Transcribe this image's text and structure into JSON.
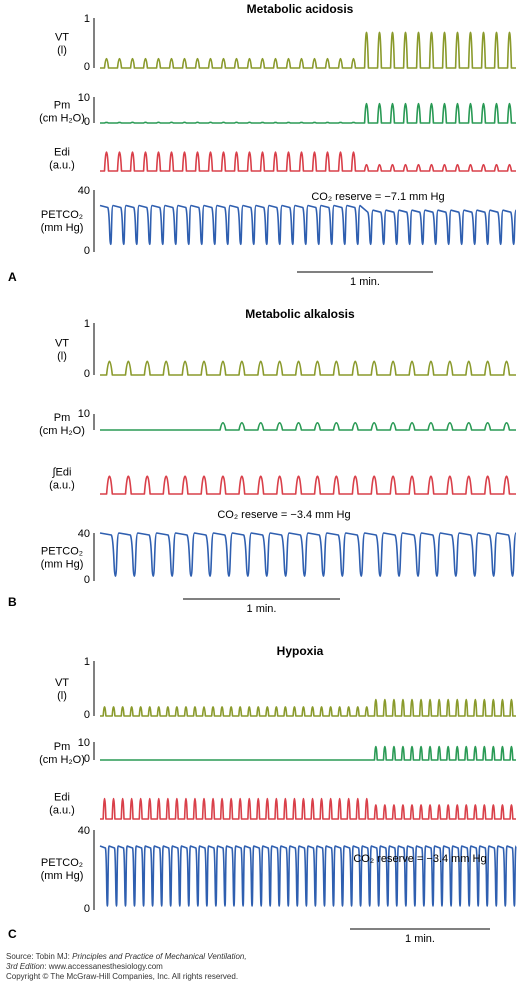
{
  "chart_data": {
    "type": "line",
    "title": "",
    "panels": [
      {
        "letter": "A",
        "title": "Metabolic acidosis",
        "annotation": "CO₂ reserve = −7.1 mm Hg",
        "scale_bar_label": "1 min.",
        "traces": [
          {
            "name": "VT",
            "unit": "(l)",
            "ticks": [
              "1",
              "0"
            ],
            "ylim": [
              0,
              1
            ],
            "color": "#8a9a2c",
            "phases": [
              {
                "n": 20,
                "baseline": 0.0,
                "peak": 0.25
              },
              {
                "n": 12,
                "baseline": 0.0,
                "peak": 0.95
              }
            ]
          },
          {
            "name": "Pm",
            "unit": "(cm H₂O)",
            "ticks": [
              "10",
              "0"
            ],
            "ylim": [
              0,
              10
            ],
            "color": "#2a9a55",
            "phases": [
              {
                "n": 20,
                "baseline": 0.0,
                "peak": 0.3
              },
              {
                "n": 12,
                "baseline": 0.0,
                "peak": 10
              }
            ]
          },
          {
            "name": "Edi",
            "unit": "(a.u.)",
            "ticks": [],
            "ylim": [
              0,
              1
            ],
            "color": "#d9404a",
            "phases": [
              {
                "n": 20,
                "baseline": 0.0,
                "peak": 0.9
              },
              {
                "n": 12,
                "baseline": 0.0,
                "peak": 0.3
              }
            ]
          },
          {
            "name": "PETCO₂",
            "unit": "(mm Hg)",
            "ticks": [
              "40",
              "0"
            ],
            "ylim": [
              0,
              40
            ],
            "color": "#2f5fb0",
            "phases": [
              {
                "n": 20,
                "baseline": 5,
                "peak": 30
              },
              {
                "n": 12,
                "baseline": 5,
                "peak": 27
              }
            ]
          }
        ]
      },
      {
        "letter": "B",
        "title": "Metabolic alkalosis",
        "annotation": "CO₂ reserve = −3.4 mm Hg",
        "scale_bar_label": "1 min.",
        "traces": [
          {
            "name": "VT",
            "unit": "(l)",
            "ticks": [
              "1",
              "0"
            ],
            "ylim": [
              0,
              1
            ],
            "color": "#8a9a2c",
            "phases": [
              {
                "n": 22,
                "baseline": 0.0,
                "peak": 0.35
              }
            ]
          },
          {
            "name": "Pm",
            "unit": "(cm H₂O)",
            "ticks": [
              "10"
            ],
            "ylim": [
              0,
              10
            ],
            "color": "#2a9a55",
            "phases": [
              {
                "n": 6,
                "baseline": 0.0,
                "peak": 0
              },
              {
                "n": 16,
                "baseline": 0.0,
                "peak": 6
              }
            ]
          },
          {
            "name": "∫Edi",
            "unit": "(a.u.)",
            "ticks": [],
            "ylim": [
              0,
              1
            ],
            "color": "#d9404a",
            "phases": [
              {
                "n": 22,
                "baseline": 0.0,
                "peak": 0.7
              }
            ]
          },
          {
            "name": "PETCO₂",
            "unit": "(mm Hg)",
            "ticks": [
              "40",
              "0"
            ],
            "ylim": [
              0,
              40
            ],
            "color": "#2f5fb0",
            "phases": [
              {
                "n": 22,
                "baseline": 4,
                "peak": 40
              }
            ]
          }
        ]
      },
      {
        "letter": "C",
        "title": "Hypoxia",
        "annotation": "CO₂ reserve = −3.4 mm Hg",
        "scale_bar_label": "1 min.",
        "traces": [
          {
            "name": "VT",
            "unit": "(l)",
            "ticks": [
              "1",
              "0"
            ],
            "ylim": [
              0,
              1
            ],
            "color": "#8a9a2c",
            "phases": [
              {
                "n": 30,
                "baseline": 0.0,
                "peak": 0.22
              },
              {
                "n": 16,
                "baseline": 0.0,
                "peak": 0.4
              }
            ]
          },
          {
            "name": "Pm",
            "unit": "(cm H₂O)",
            "ticks": [
              "10",
              "0"
            ],
            "ylim": [
              0,
              10
            ],
            "color": "#2a9a55",
            "phases": [
              {
                "n": 30,
                "baseline": 0.0,
                "peak": 0
              },
              {
                "n": 16,
                "baseline": 0.0,
                "peak": 10
              }
            ]
          },
          {
            "name": "Edi",
            "unit": "(a.u.)",
            "ticks": [],
            "ylim": [
              0,
              1
            ],
            "color": "#d9404a",
            "phases": [
              {
                "n": 30,
                "baseline": 0.0,
                "peak": 0.8
              },
              {
                "n": 16,
                "baseline": 0.0,
                "peak": 0.55
              }
            ]
          },
          {
            "name": "PETCO₂",
            "unit": "(mm Hg)",
            "ticks": [
              "40",
              "0"
            ],
            "ylim": [
              0,
              40
            ],
            "color": "#2f5fb0",
            "phases": [
              {
                "n": 46,
                "baseline": 2,
                "peak": 32
              }
            ]
          }
        ]
      }
    ]
  },
  "footer": {
    "source_prefix": "Source: Tobin MJ: ",
    "source_title": "Principles and Practice of Mechanical Ventilation,",
    "edition": "3rd Edition",
    "url": ": www.accessanesthesiology.com",
    "copyright": "Copyright © The McGraw-Hill Companies, Inc. All rights reserved."
  }
}
